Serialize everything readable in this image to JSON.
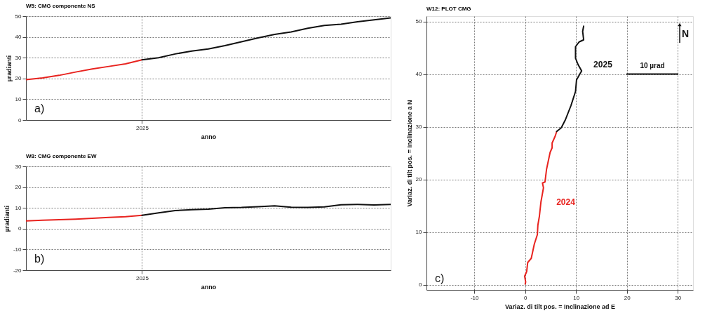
{
  "chart_data": [
    {
      "type": "line",
      "title": "W5: CMG componente NS",
      "xlabel": "anno",
      "ylabel": "µradianti",
      "categories": [
        null,
        null,
        null,
        null,
        null,
        null,
        null,
        "2025",
        null,
        null,
        null,
        null,
        null,
        null,
        null,
        null,
        null,
        null,
        null,
        null,
        null,
        null,
        null
      ],
      "ylim": [
        0,
        50
      ],
      "yticks": [
        0,
        10,
        20,
        30,
        40,
        50
      ],
      "grid": true,
      "legend": false,
      "marker": "none",
      "line_style": "solid",
      "annotations": [
        "a)"
      ],
      "series": [
        {
          "color": "#e8231f",
          "values": [
            19.4,
            20.3,
            21.5,
            23.1,
            24.6,
            25.8,
            27.0,
            29.0,
            null,
            null,
            null,
            null,
            null,
            null,
            null,
            null,
            null,
            null,
            null,
            null,
            null,
            null,
            null
          ]
        },
        {
          "color": "#111111",
          "values": [
            null,
            null,
            null,
            null,
            null,
            null,
            null,
            29.0,
            30.0,
            31.8,
            33.2,
            34.2,
            35.8,
            37.7,
            39.5,
            41.2,
            42.4,
            44.2,
            45.5,
            46.1,
            47.3,
            48.2,
            49.2
          ]
        }
      ]
    },
    {
      "type": "line",
      "title": "W8: CMG componente EW",
      "xlabel": "anno",
      "ylabel": "µradianti",
      "categories": [
        null,
        null,
        null,
        null,
        null,
        null,
        null,
        "2025",
        null,
        null,
        null,
        null,
        null,
        null,
        null,
        null,
        null,
        null,
        null,
        null,
        null,
        null,
        null
      ],
      "ylim": [
        -20,
        30
      ],
      "yticks": [
        -20,
        -10,
        0,
        10,
        20,
        30
      ],
      "grid": true,
      "legend": false,
      "marker": "none",
      "line_style": "solid",
      "annotations": [
        "b)"
      ],
      "series": [
        {
          "color": "#e8231f",
          "values": [
            3.7,
            4.1,
            4.3,
            4.6,
            5.0,
            5.4,
            5.8,
            6.4,
            null,
            null,
            null,
            null,
            null,
            null,
            null,
            null,
            null,
            null,
            null,
            null,
            null,
            null,
            null
          ]
        },
        {
          "color": "#111111",
          "values": [
            null,
            null,
            null,
            null,
            null,
            null,
            null,
            6.4,
            7.6,
            8.7,
            9.1,
            9.4,
            10.1,
            10.2,
            10.6,
            11.0,
            10.3,
            10.2,
            10.5,
            11.5,
            11.7,
            11.4,
            11.7
          ]
        }
      ]
    },
    {
      "type": "line",
      "title": "W12: PLOT CMG",
      "xlabel": "Variaz. di tilt pos. = Inclinazione ad E",
      "ylabel": "Variaz. di tilt pos. = Inclinazione a N",
      "xlim": [
        -19.4,
        33
      ],
      "xticks": [
        -10,
        0,
        10,
        20,
        30
      ],
      "ylim": [
        -1,
        51
      ],
      "yticks": [
        0,
        10,
        20,
        30,
        40,
        50
      ],
      "grid": true,
      "legend": false,
      "marker": "none",
      "line_style": "solid",
      "annotations": [
        "c)",
        "N",
        {
          "text": "10 µrad",
          "x": 25,
          "y": 40
        }
      ],
      "series": [
        {
          "name": "2024",
          "color": "#e8231f",
          "x": [
            0,
            0.1,
            -0.1,
            0.3,
            0.5,
            1.2,
            1.8,
            2.4,
            2.5,
            2.8,
            3.1,
            3.6,
            3.4,
            3.9,
            4.2,
            4.9,
            5.3,
            5.3,
            5.9,
            6.2
          ],
          "values": [
            0.1,
            0.5,
            1.6,
            2.5,
            4.2,
            5.0,
            7.7,
            9.5,
            11.3,
            13.0,
            15.7,
            18.4,
            19.3,
            19.5,
            21.9,
            25.1,
            26.0,
            26.9,
            28.2,
            29.1
          ]
        },
        {
          "name": "2025",
          "color": "#111111",
          "x": [
            6.2,
            7.1,
            7.9,
            9.0,
            9.9,
            10.1,
            11.1,
            10.4,
            9.9,
            9.9,
            10.6,
            11.5,
            11.3,
            11.5
          ],
          "values": [
            29.1,
            29.8,
            31.3,
            34.0,
            36.7,
            38.9,
            40.6,
            41.8,
            43.0,
            45.2,
            46.1,
            46.5,
            48.1,
            49.1
          ]
        },
        {
          "color": "#111111",
          "x": [
            20,
            30
          ],
          "values": [
            40,
            40
          ]
        }
      ]
    }
  ]
}
